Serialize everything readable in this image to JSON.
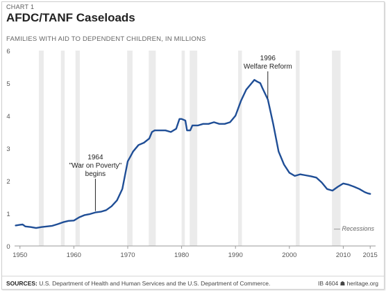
{
  "header": {
    "kicker": "CHART 1",
    "title": "AFDC/TANF Caseloads",
    "subtitle": "FAMILIES WITH AID TO DEPENDENT CHILDREN, IN MILLIONS"
  },
  "footer": {
    "sources_label": "SOURCES:",
    "sources_text": " U.S. Department of Health and Human Services and the U.S. Department of Commerce.",
    "brand": "IB 4604 ☗ heritage.org"
  },
  "legend": {
    "recessions": "— Recessions"
  },
  "colors": {
    "line": "#1f4e96",
    "recession": "#ebebeb",
    "baseline": "#999999",
    "annotation": "#222222"
  },
  "chart_data": {
    "type": "line",
    "title": "AFDC/TANF Caseloads",
    "subtitle": "FAMILIES WITH AID TO DEPENDENT CHILDREN, IN MILLIONS",
    "xlabel": "",
    "ylabel": "",
    "xlim": [
      1949,
      2016
    ],
    "ylim": [
      0,
      6
    ],
    "grid": false,
    "y_ticks": [
      0,
      1,
      2,
      3,
      4,
      5,
      6
    ],
    "x_ticks": [
      1950,
      1960,
      1970,
      1980,
      1990,
      2000,
      2010,
      2015
    ],
    "recessions": [
      [
        1953.5,
        1954.4
      ],
      [
        1957.6,
        1958.3
      ],
      [
        1960.3,
        1961.1
      ],
      [
        1969.9,
        1970.9
      ],
      [
        1973.9,
        1975.2
      ],
      [
        1980.0,
        1980.6
      ],
      [
        1981.5,
        1982.9
      ],
      [
        1990.5,
        1991.2
      ],
      [
        2001.2,
        2001.9
      ],
      [
        2007.9,
        2009.5
      ]
    ],
    "series": [
      {
        "x": [
          1949.2,
          1950,
          1950.5,
          1951,
          1952,
          1953,
          1954,
          1955,
          1956,
          1957,
          1958,
          1959,
          1960,
          1961,
          1962,
          1963,
          1964,
          1965,
          1966,
          1967,
          1968,
          1969,
          1970,
          1970.5,
          1971,
          1972,
          1973,
          1974,
          1974.5,
          1975,
          1976,
          1977,
          1978,
          1979,
          1979.6,
          1980,
          1980.7,
          1981,
          1981.6,
          1982,
          1983,
          1984,
          1985,
          1986,
          1987,
          1988,
          1989,
          1990,
          1991,
          1992,
          1993,
          1993.5,
          1994,
          1994.6,
          1995,
          1996,
          1997,
          1998,
          1999,
          2000,
          2001,
          2002,
          2003,
          2004,
          2005,
          2006,
          2007,
          2008,
          2009,
          2010,
          2011,
          2012,
          2013,
          2014,
          2014.5,
          2015
        ],
        "y": [
          0.63,
          0.65,
          0.66,
          0.6,
          0.58,
          0.55,
          0.58,
          0.6,
          0.62,
          0.67,
          0.73,
          0.77,
          0.78,
          0.88,
          0.95,
          0.98,
          1.03,
          1.05,
          1.1,
          1.22,
          1.4,
          1.75,
          2.6,
          2.75,
          2.9,
          3.1,
          3.17,
          3.3,
          3.5,
          3.55,
          3.55,
          3.55,
          3.5,
          3.6,
          3.9,
          3.9,
          3.85,
          3.55,
          3.55,
          3.7,
          3.7,
          3.75,
          3.75,
          3.8,
          3.75,
          3.75,
          3.8,
          4.0,
          4.45,
          4.8,
          5.0,
          5.1,
          5.05,
          5.0,
          4.85,
          4.5,
          3.75,
          2.9,
          2.5,
          2.25,
          2.15,
          2.2,
          2.17,
          2.14,
          2.1,
          1.95,
          1.75,
          1.7,
          1.82,
          1.92,
          1.88,
          1.82,
          1.75,
          1.65,
          1.62,
          1.6
        ]
      }
    ],
    "annotations": [
      {
        "lines": [
          "1964",
          "\"War on Poverty\"",
          "begins"
        ],
        "x": 1964,
        "y_value": 1.03
      },
      {
        "lines": [
          "1996",
          "Welfare Reform"
        ],
        "x": 1996,
        "y_value": 4.5
      }
    ]
  }
}
